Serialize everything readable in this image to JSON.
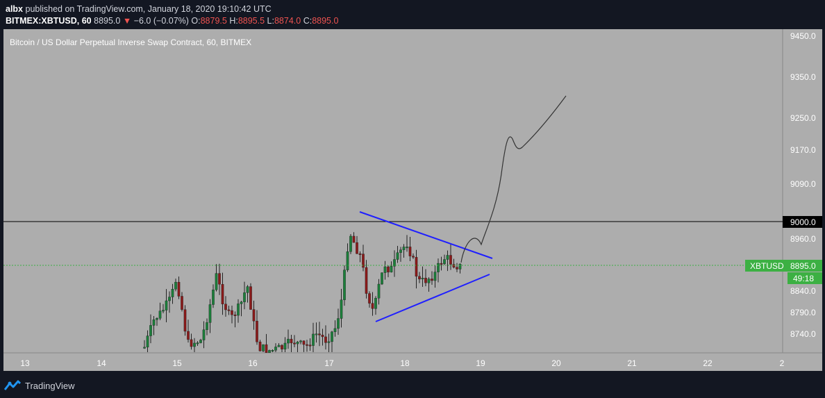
{
  "header": {
    "user": "albx",
    "published": " published on TradingView.com, January 18, 2020 19:10:42 UTC",
    "symbol": "BITMEX:XBTUSD, 60",
    "last": "8895.0",
    "change": "−6.0 (−0.07%)",
    "o_label": "O:",
    "o_value": "8879.5",
    "h_label": "H:",
    "h_value": "8895.5",
    "l_label": "L:",
    "l_value": "8874.0",
    "c_label": "C:",
    "c_value": "8895.0"
  },
  "chart_title": "Bitcoin / US Dollar Perpetual Inverse Swap Contract, 60, BITMEX",
  "colors": {
    "background": "#adadad",
    "up": "#26a69a",
    "down": "#ef5350",
    "triangle": "#1f1fff",
    "price_tag": "#3cb043"
  },
  "price_labels": [
    "9450.0",
    "9350.0",
    "9250.0",
    "9170.0",
    "9090.0",
    "9000.0",
    "8960.0",
    "8895.0",
    "8840.0",
    "8790.0",
    "8740.0"
  ],
  "date_labels": [
    "13",
    "14",
    "15",
    "16",
    "17",
    "18",
    "19",
    "20",
    "21",
    "22",
    "2"
  ],
  "price_tag": {
    "symbol": "XBTUSD",
    "price": "8895.0",
    "countdown": "49:18"
  },
  "level_line": "9000.0",
  "brand": "TradingView"
}
